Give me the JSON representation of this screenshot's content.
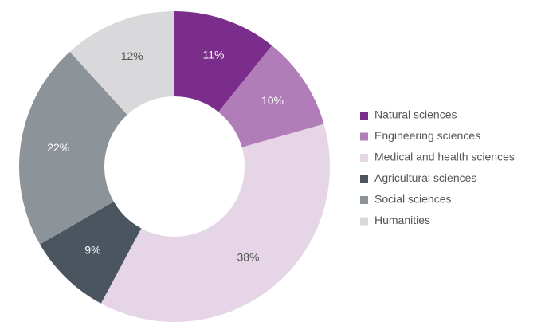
{
  "chart_data": {
    "type": "pie",
    "categories": [
      "Natural sciences",
      "Engineering sciences",
      "Medical and health sciences",
      "Agricultural sciences",
      "Social sciences",
      "Humanities"
    ],
    "values": [
      11,
      10,
      38,
      9,
      22,
      12
    ],
    "value_labels": [
      "11%",
      "10%",
      "38%",
      "9%",
      "22%",
      "12%"
    ],
    "colors": [
      "#7b2d8b",
      "#b07db8",
      "#e6d5e6",
      "#4a5560",
      "#8c9399",
      "#d9d9db"
    ],
    "donut": true,
    "legend": "right"
  }
}
